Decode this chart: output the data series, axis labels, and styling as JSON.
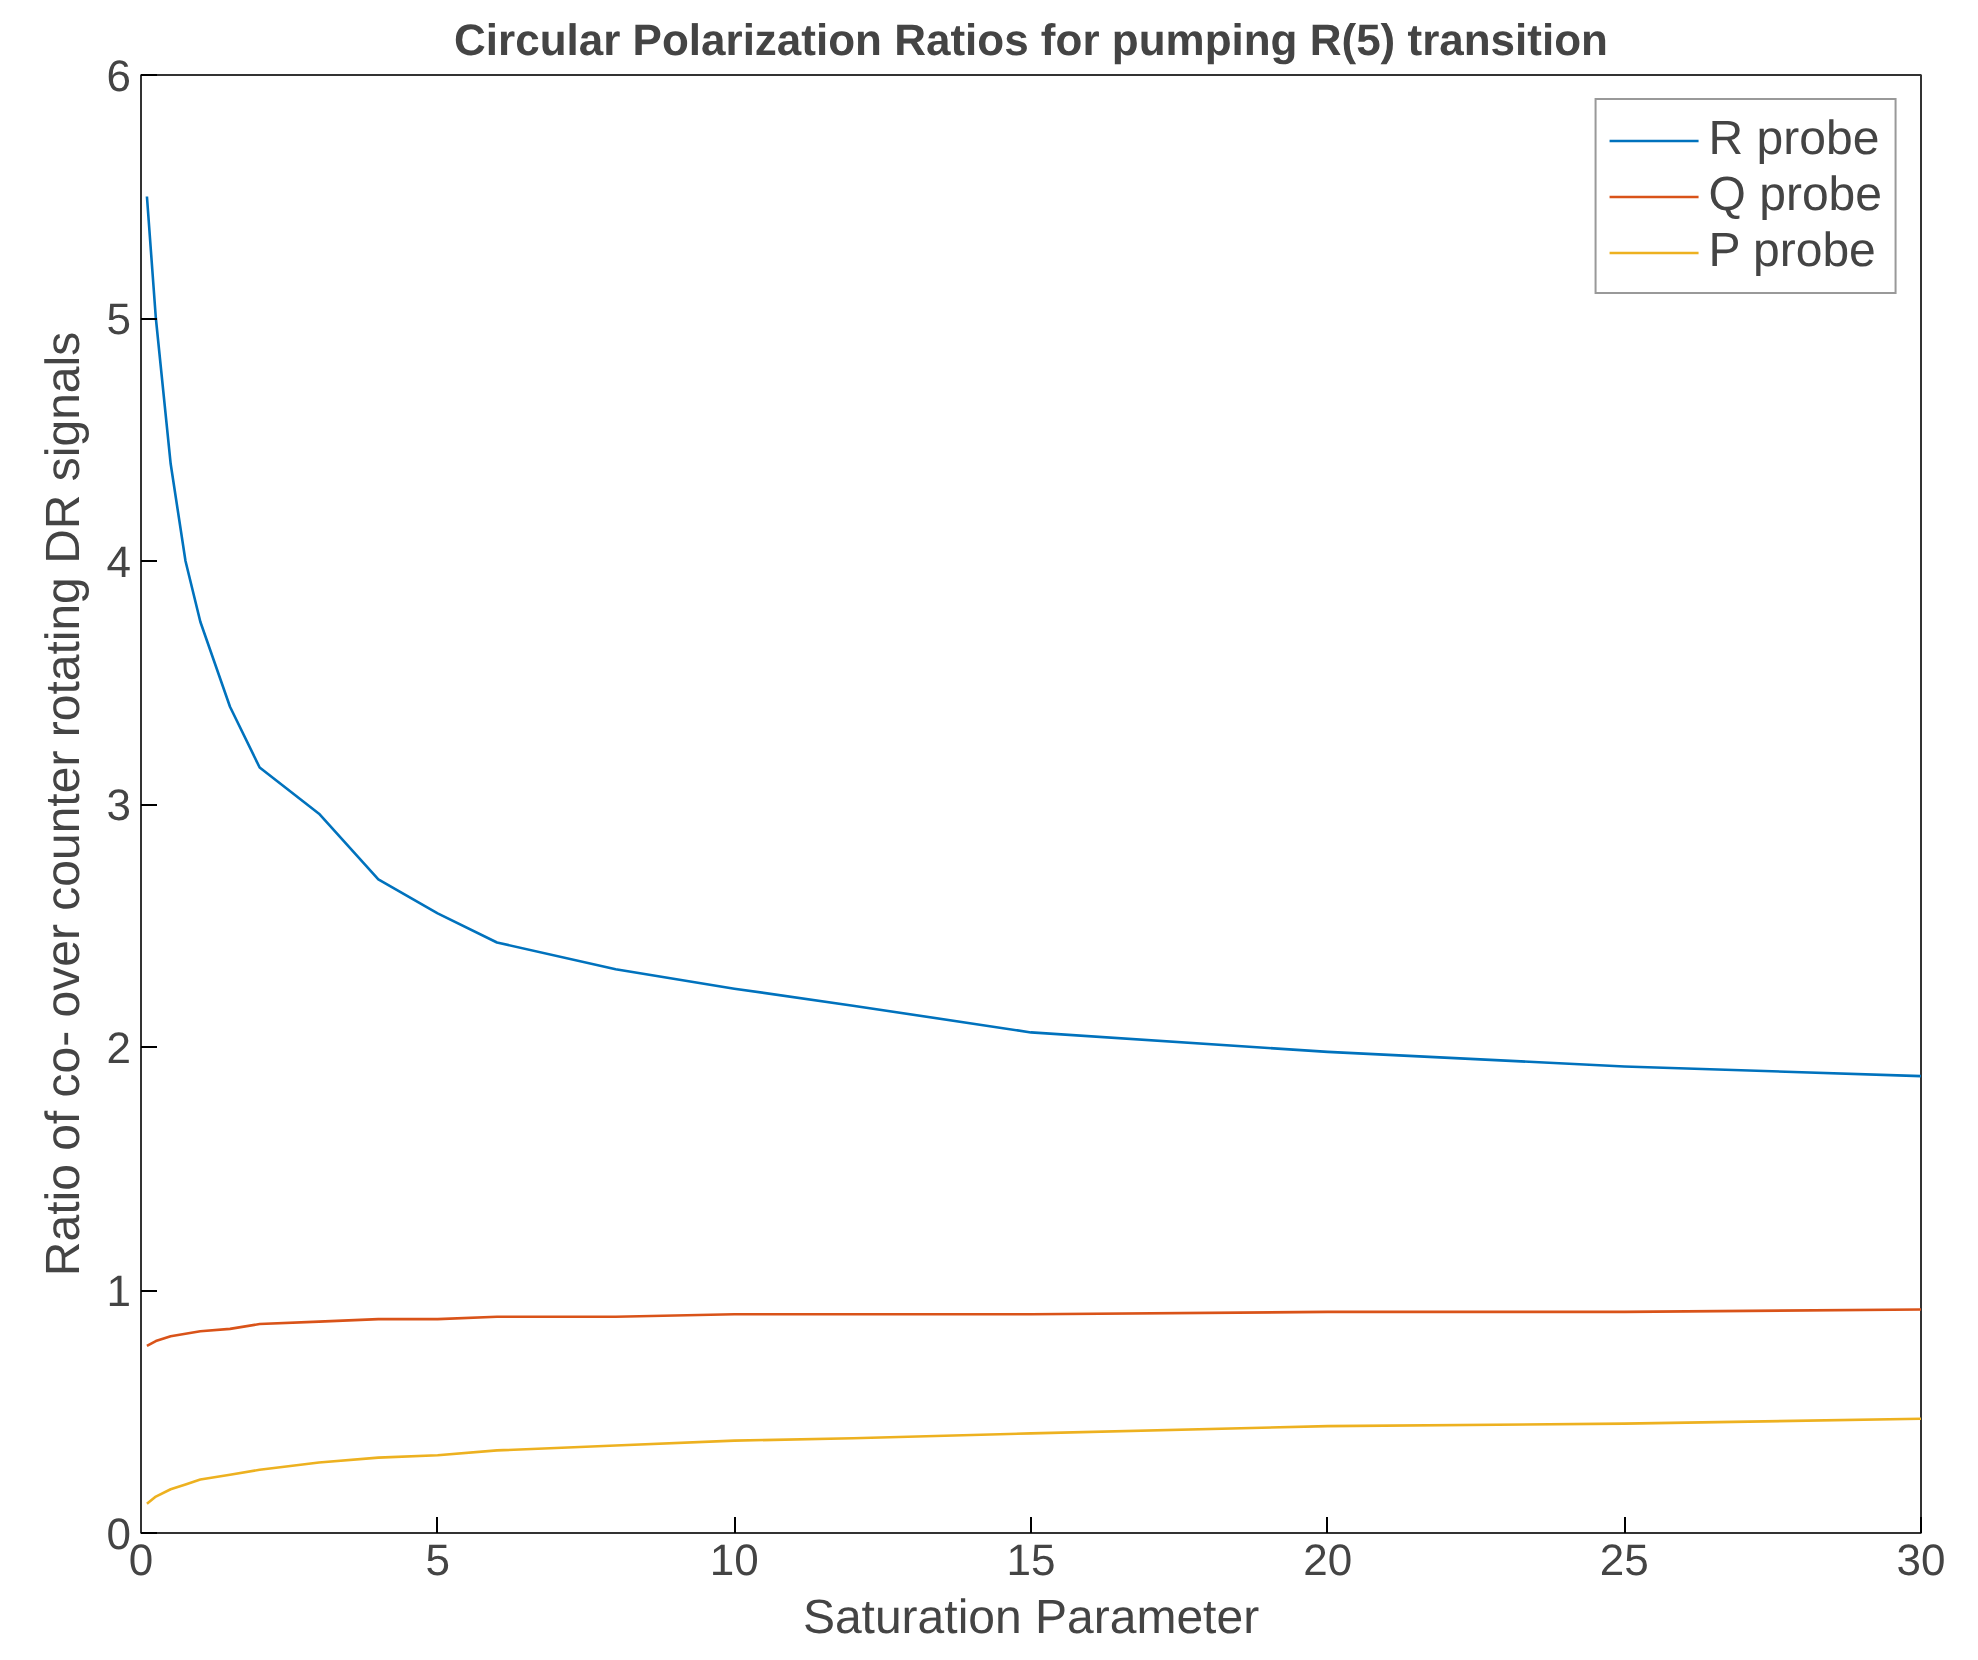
{
  "chart_data": {
    "type": "line",
    "title": "Circular Polarization Ratios for pumping R(5) transition",
    "xlabel": "Saturation Parameter",
    "ylabel": "Ratio of co- over counter rotating DR signals",
    "x": [
      0.1,
      0.25,
      0.5,
      0.75,
      1,
      1.5,
      2,
      3,
      4,
      5,
      6,
      8,
      10,
      12,
      15,
      20,
      25,
      30
    ],
    "series": [
      {
        "name": "R probe",
        "color": "#0072bd",
        "values": [
          5.5,
          5.0,
          4.4,
          4.0,
          3.75,
          3.4,
          3.15,
          2.96,
          2.69,
          2.55,
          2.43,
          2.32,
          2.24,
          2.17,
          2.06,
          1.98,
          1.92,
          1.88
        ]
      },
      {
        "name": "Q probe",
        "color": "#d95319",
        "values": [
          0.77,
          0.79,
          0.81,
          0.82,
          0.83,
          0.84,
          0.86,
          0.87,
          0.88,
          0.88,
          0.89,
          0.89,
          0.9,
          0.9,
          0.9,
          0.91,
          0.91,
          0.92
        ]
      },
      {
        "name": "P probe",
        "color": "#edb120",
        "values": [
          0.12,
          0.15,
          0.18,
          0.2,
          0.22,
          0.24,
          0.26,
          0.29,
          0.31,
          0.32,
          0.34,
          0.36,
          0.38,
          0.39,
          0.41,
          0.44,
          0.45,
          0.47
        ]
      }
    ],
    "xlim": [
      0,
      30
    ],
    "ylim": [
      0,
      6
    ],
    "xticks": [
      0,
      5,
      10,
      15,
      20,
      25,
      30
    ],
    "yticks": [
      0,
      1,
      2,
      3,
      4,
      5,
      6
    ],
    "grid": false,
    "legend": "top right",
    "marker": "none",
    "line_style": "solid"
  }
}
